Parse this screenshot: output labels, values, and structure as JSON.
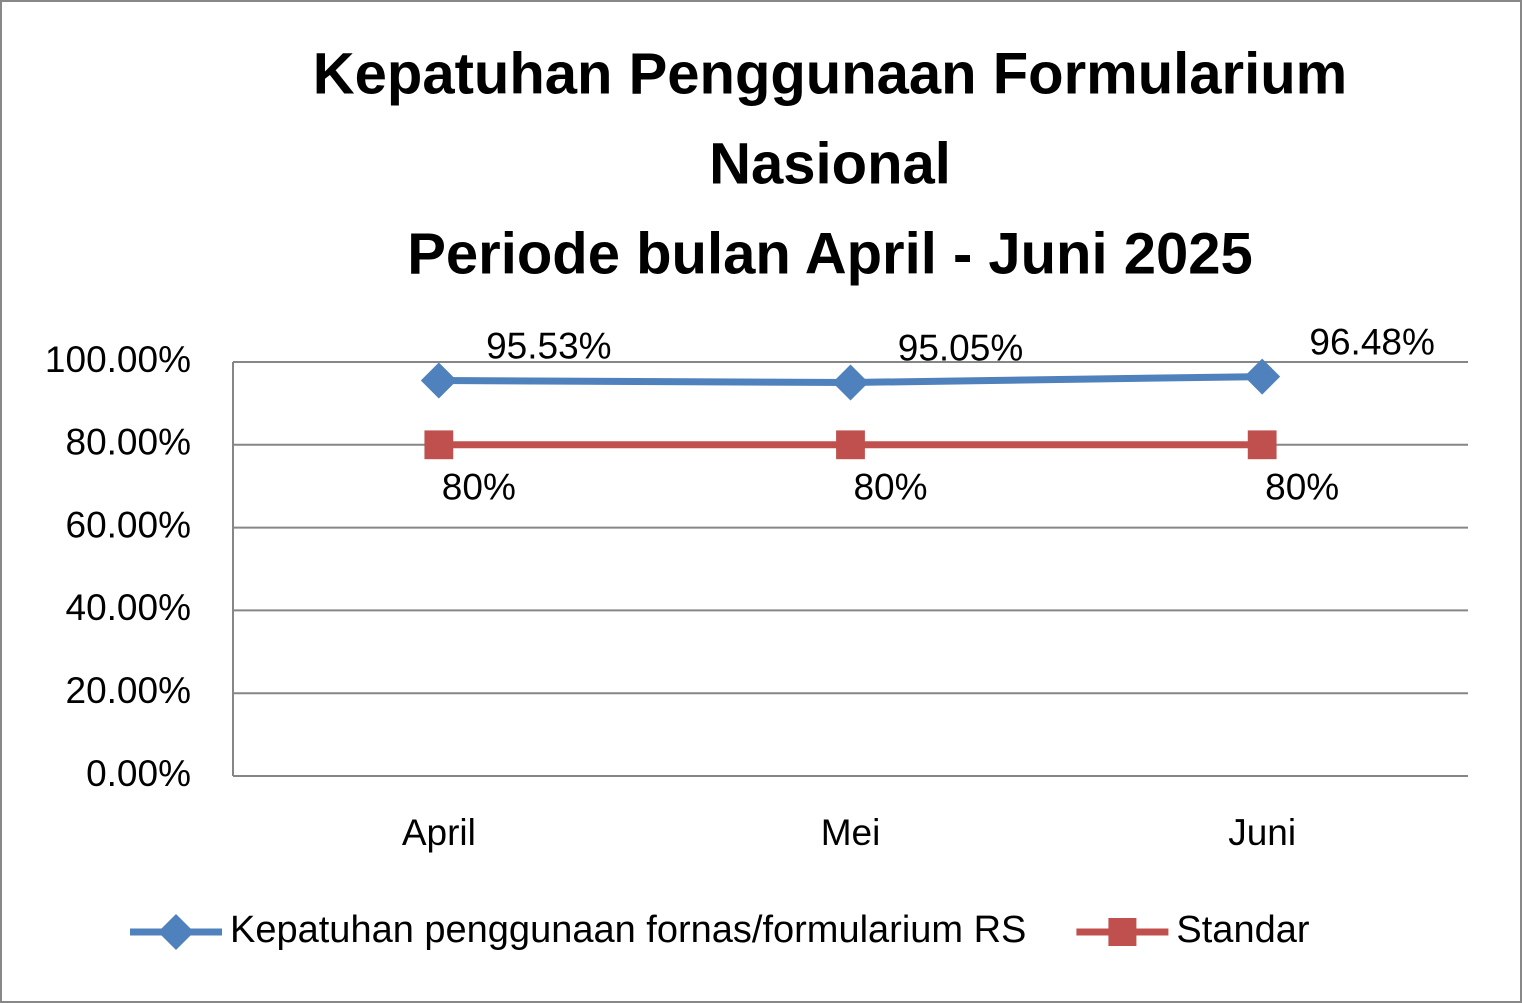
{
  "chart_data": {
    "type": "line",
    "title": [
      "Kepatuhan Penggunaan Formularium",
      "Nasional",
      "Periode bulan April - Juni 2025"
    ],
    "categories": [
      "April",
      "Mei",
      "Juni"
    ],
    "series": [
      {
        "name": "Kepatuhan penggunaan fornas/formularium RS",
        "color": "#4f81bd",
        "marker": "diamond",
        "values": [
          95.53,
          95.05,
          96.48
        ],
        "value_labels": [
          "95.53%",
          "95.05%",
          "96.48%"
        ]
      },
      {
        "name": "Standar",
        "color": "#c0504d",
        "marker": "square",
        "values": [
          80,
          80,
          80
        ],
        "value_labels": [
          "80%",
          "80%",
          "80%"
        ]
      }
    ],
    "ylim": [
      0,
      100
    ],
    "yticks": [
      {
        "value": 0,
        "label": "0.00%"
      },
      {
        "value": 20,
        "label": "20.00%"
      },
      {
        "value": 40,
        "label": "40.00%"
      },
      {
        "value": 60,
        "label": "60.00%"
      },
      {
        "value": 80,
        "label": "80.00%"
      },
      {
        "value": 100,
        "label": "100.00%"
      }
    ],
    "grid": true,
    "legend": "bottom"
  }
}
